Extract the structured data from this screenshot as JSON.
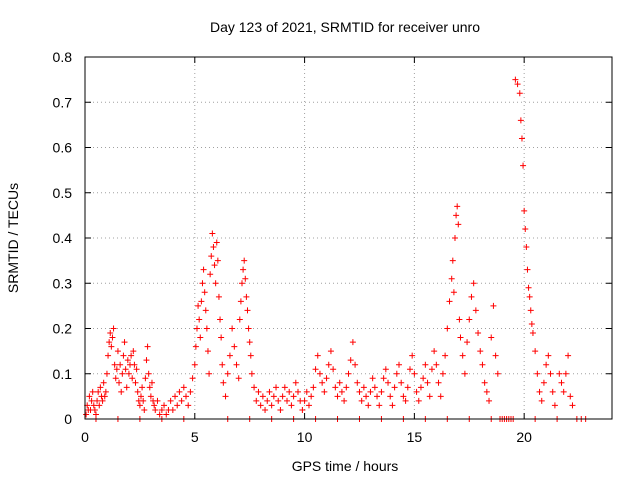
{
  "chart_data": {
    "type": "scatter",
    "title": "Day 123 of 2021, SRMTID for receiver unro",
    "xlabel": "GPS time / hours",
    "ylabel": "SRMTID / TECUs",
    "xlim": [
      0,
      24
    ],
    "ylim": [
      0,
      0.8
    ],
    "x_ticks": [
      0,
      5,
      10,
      15,
      20
    ],
    "x_tick_labels": [
      "0",
      "5",
      "10",
      "15",
      "20"
    ],
    "y_ticks": [
      0,
      0.1,
      0.2,
      0.3,
      0.4,
      0.5,
      0.6,
      0.7,
      0.8
    ],
    "y_tick_labels": [
      "0",
      "0.1",
      "0.2",
      "0.3",
      "0.4",
      "0.5",
      "0.6",
      "0.7",
      "0.8"
    ],
    "grid": true,
    "marker": "+",
    "color": "#ff0000",
    "series": [
      {
        "name": "SRMTID",
        "points": [
          [
            0.05,
            0.01
          ],
          [
            0.1,
            0.03
          ],
          [
            0.15,
            0.02
          ],
          [
            0.2,
            0.05
          ],
          [
            0.25,
            0.02
          ],
          [
            0.3,
            0.04
          ],
          [
            0.35,
            0.06
          ],
          [
            0.4,
            0.03
          ],
          [
            0.45,
            0.02
          ],
          [
            0.5,
            0.01
          ],
          [
            0.55,
            0.04
          ],
          [
            0.6,
            0.06
          ],
          [
            0.65,
            0.03
          ],
          [
            0.7,
            0.07
          ],
          [
            0.75,
            0.05
          ],
          [
            0.8,
            0.04
          ],
          [
            0.85,
            0.08
          ],
          [
            0.9,
            0.05
          ],
          [
            0.95,
            0.06
          ],
          [
            1.0,
            0.1
          ],
          [
            1.05,
            0.14
          ],
          [
            1.1,
            0.17
          ],
          [
            1.15,
            0.19
          ],
          [
            1.2,
            0.16
          ],
          [
            1.25,
            0.18
          ],
          [
            1.3,
            0.2
          ],
          [
            1.35,
            0.12
          ],
          [
            1.4,
            0.09
          ],
          [
            1.45,
            0.11
          ],
          [
            1.5,
            0.15
          ],
          [
            1.55,
            0.08
          ],
          [
            1.6,
            0.12
          ],
          [
            1.65,
            0.06
          ],
          [
            1.7,
            0.1
          ],
          [
            1.75,
            0.14
          ],
          [
            1.8,
            0.17
          ],
          [
            1.85,
            0.11
          ],
          [
            1.9,
            0.07
          ],
          [
            1.95,
            0.13
          ],
          [
            2.0,
            0.1
          ],
          [
            2.05,
            0.12
          ],
          [
            2.1,
            0.14
          ],
          [
            2.15,
            0.09
          ],
          [
            2.2,
            0.15
          ],
          [
            2.25,
            0.12
          ],
          [
            2.3,
            0.08
          ],
          [
            2.35,
            0.11
          ],
          [
            2.4,
            0.06
          ],
          [
            2.45,
            0.04
          ],
          [
            2.5,
            0.03
          ],
          [
            2.55,
            0.05
          ],
          [
            2.6,
            0.07
          ],
          [
            2.65,
            0.04
          ],
          [
            2.7,
            0.02
          ],
          [
            2.75,
            0.09
          ],
          [
            2.8,
            0.13
          ],
          [
            2.85,
            0.16
          ],
          [
            2.9,
            0.1
          ],
          [
            2.95,
            0.07
          ],
          [
            3.0,
            0.05
          ],
          [
            3.05,
            0.08
          ],
          [
            3.1,
            0.04
          ],
          [
            3.15,
            0.03
          ],
          [
            3.2,
            0.02
          ],
          [
            3.3,
            0.04
          ],
          [
            3.4,
            0.01
          ],
          [
            3.5,
            0.02
          ],
          [
            3.6,
            0.03
          ],
          [
            3.7,
            0.01
          ],
          [
            3.8,
            0.02
          ],
          [
            3.9,
            0.04
          ],
          [
            4.0,
            0.02
          ],
          [
            4.1,
            0.05
          ],
          [
            4.2,
            0.03
          ],
          [
            4.3,
            0.06
          ],
          [
            4.4,
            0.04
          ],
          [
            4.5,
            0.07
          ],
          [
            4.6,
            0.05
          ],
          [
            4.7,
            0.03
          ],
          [
            4.8,
            0.06
          ],
          [
            4.9,
            0.09
          ],
          [
            5.0,
            0.12
          ],
          [
            5.05,
            0.16
          ],
          [
            5.1,
            0.2
          ],
          [
            5.15,
            0.25
          ],
          [
            5.2,
            0.22
          ],
          [
            5.25,
            0.18
          ],
          [
            5.3,
            0.26
          ],
          [
            5.35,
            0.3
          ],
          [
            5.4,
            0.33
          ],
          [
            5.45,
            0.28
          ],
          [
            5.5,
            0.24
          ],
          [
            5.55,
            0.2
          ],
          [
            5.6,
            0.15
          ],
          [
            5.65,
            0.1
          ],
          [
            5.7,
            0.32
          ],
          [
            5.75,
            0.36
          ],
          [
            5.8,
            0.41
          ],
          [
            5.85,
            0.38
          ],
          [
            5.9,
            0.34
          ],
          [
            5.95,
            0.3
          ],
          [
            6.0,
            0.39
          ],
          [
            6.05,
            0.35
          ],
          [
            6.1,
            0.27
          ],
          [
            6.15,
            0.22
          ],
          [
            6.2,
            0.18
          ],
          [
            6.25,
            0.12
          ],
          [
            6.3,
            0.08
          ],
          [
            6.4,
            0.05
          ],
          [
            6.5,
            0.1
          ],
          [
            6.6,
            0.14
          ],
          [
            6.7,
            0.2
          ],
          [
            6.8,
            0.16
          ],
          [
            6.9,
            0.12
          ],
          [
            7.0,
            0.09
          ],
          [
            7.05,
            0.22
          ],
          [
            7.1,
            0.26
          ],
          [
            7.15,
            0.3
          ],
          [
            7.2,
            0.33
          ],
          [
            7.25,
            0.35
          ],
          [
            7.3,
            0.31
          ],
          [
            7.35,
            0.27
          ],
          [
            7.4,
            0.24
          ],
          [
            7.45,
            0.2
          ],
          [
            7.5,
            0.17
          ],
          [
            7.55,
            0.14
          ],
          [
            7.6,
            0.1
          ],
          [
            7.7,
            0.07
          ],
          [
            7.8,
            0.04
          ],
          [
            7.9,
            0.06
          ],
          [
            8.0,
            0.03
          ],
          [
            8.1,
            0.05
          ],
          [
            8.2,
            0.02
          ],
          [
            8.3,
            0.04
          ],
          [
            8.4,
            0.06
          ],
          [
            8.5,
            0.03
          ],
          [
            8.6,
            0.05
          ],
          [
            8.7,
            0.07
          ],
          [
            8.8,
            0.04
          ],
          [
            8.9,
            0.02
          ],
          [
            9.0,
            0.05
          ],
          [
            9.1,
            0.07
          ],
          [
            9.2,
            0.04
          ],
          [
            9.3,
            0.06
          ],
          [
            9.4,
            0.03
          ],
          [
            9.5,
            0.05
          ],
          [
            9.6,
            0.08
          ],
          [
            9.7,
            0.06
          ],
          [
            9.8,
            0.04
          ],
          [
            9.9,
            0.02
          ],
          [
            10.0,
            0.04
          ],
          [
            10.1,
            0.06
          ],
          [
            10.2,
            0.03
          ],
          [
            10.3,
            0.05
          ],
          [
            10.4,
            0.07
          ],
          [
            10.5,
            0.11
          ],
          [
            10.6,
            0.14
          ],
          [
            10.7,
            0.1
          ],
          [
            10.8,
            0.08
          ],
          [
            10.9,
            0.06
          ],
          [
            11.0,
            0.09
          ],
          [
            11.1,
            0.12
          ],
          [
            11.2,
            0.15
          ],
          [
            11.3,
            0.11
          ],
          [
            11.4,
            0.07
          ],
          [
            11.5,
            0.05
          ],
          [
            11.6,
            0.08
          ],
          [
            11.7,
            0.06
          ],
          [
            11.8,
            0.04
          ],
          [
            11.9,
            0.07
          ],
          [
            12.0,
            0.1
          ],
          [
            12.1,
            0.13
          ],
          [
            12.2,
            0.17
          ],
          [
            12.3,
            0.12
          ],
          [
            12.4,
            0.08
          ],
          [
            12.5,
            0.06
          ],
          [
            12.6,
            0.04
          ],
          [
            12.7,
            0.07
          ],
          [
            12.8,
            0.05
          ],
          [
            12.9,
            0.03
          ],
          [
            13.0,
            0.06
          ],
          [
            13.1,
            0.09
          ],
          [
            13.2,
            0.07
          ],
          [
            13.3,
            0.05
          ],
          [
            13.4,
            0.03
          ],
          [
            13.5,
            0.06
          ],
          [
            13.6,
            0.09
          ],
          [
            13.7,
            0.11
          ],
          [
            13.8,
            0.08
          ],
          [
            13.9,
            0.05
          ],
          [
            14.0,
            0.03
          ],
          [
            14.1,
            0.07
          ],
          [
            14.2,
            0.1
          ],
          [
            14.3,
            0.12
          ],
          [
            14.4,
            0.08
          ],
          [
            14.5,
            0.05
          ],
          [
            14.6,
            0.04
          ],
          [
            14.7,
            0.07
          ],
          [
            14.8,
            0.11
          ],
          [
            14.9,
            0.14
          ],
          [
            15.0,
            0.1
          ],
          [
            15.1,
            0.06
          ],
          [
            15.2,
            0.04
          ],
          [
            15.3,
            0.07
          ],
          [
            15.4,
            0.09
          ],
          [
            15.5,
            0.12
          ],
          [
            15.6,
            0.08
          ],
          [
            15.7,
            0.05
          ],
          [
            15.8,
            0.11
          ],
          [
            15.9,
            0.15
          ],
          [
            16.0,
            0.12
          ],
          [
            16.1,
            0.08
          ],
          [
            16.2,
            0.05
          ],
          [
            16.3,
            0.1
          ],
          [
            16.4,
            0.14
          ],
          [
            16.5,
            0.2
          ],
          [
            16.6,
            0.26
          ],
          [
            16.7,
            0.31
          ],
          [
            16.75,
            0.35
          ],
          [
            16.8,
            0.28
          ],
          [
            16.85,
            0.4
          ],
          [
            16.9,
            0.45
          ],
          [
            16.95,
            0.47
          ],
          [
            17.0,
            0.43
          ],
          [
            17.05,
            0.22
          ],
          [
            17.1,
            0.18
          ],
          [
            17.2,
            0.14
          ],
          [
            17.3,
            0.1
          ],
          [
            17.4,
            0.17
          ],
          [
            17.5,
            0.22
          ],
          [
            17.6,
            0.27
          ],
          [
            17.7,
            0.3
          ],
          [
            17.8,
            0.24
          ],
          [
            17.9,
            0.19
          ],
          [
            18.0,
            0.15
          ],
          [
            18.1,
            0.12
          ],
          [
            18.2,
            0.08
          ],
          [
            18.3,
            0.06
          ],
          [
            18.4,
            0.04
          ],
          [
            18.5,
            0.18
          ],
          [
            18.6,
            0.25
          ],
          [
            18.7,
            0.14
          ],
          [
            18.8,
            0.1
          ],
          [
            19.6,
            0.75
          ],
          [
            19.7,
            0.74
          ],
          [
            19.8,
            0.72
          ],
          [
            19.85,
            0.66
          ],
          [
            19.9,
            0.62
          ],
          [
            19.95,
            0.56
          ],
          [
            20.0,
            0.46
          ],
          [
            20.05,
            0.42
          ],
          [
            20.1,
            0.38
          ],
          [
            20.15,
            0.33
          ],
          [
            20.2,
            0.29
          ],
          [
            20.25,
            0.27
          ],
          [
            20.3,
            0.24
          ],
          [
            20.35,
            0.21
          ],
          [
            20.4,
            0.19
          ],
          [
            20.5,
            0.15
          ],
          [
            20.6,
            0.1
          ],
          [
            20.7,
            0.06
          ],
          [
            20.8,
            0.04
          ],
          [
            20.9,
            0.08
          ],
          [
            21.0,
            0.12
          ],
          [
            21.1,
            0.14
          ],
          [
            21.2,
            0.1
          ],
          [
            21.3,
            0.06
          ],
          [
            21.4,
            0.03
          ],
          [
            21.6,
            0.1
          ],
          [
            21.7,
            0.08
          ],
          [
            21.8,
            0.06
          ],
          [
            21.9,
            0.1
          ],
          [
            22.0,
            0.14
          ],
          [
            22.1,
            0.05
          ],
          [
            22.2,
            0.03
          ],
          [
            22.4,
            0.0
          ],
          [
            22.6,
            0.0
          ],
          [
            22.8,
            0.0
          ],
          [
            18.9,
            0.0
          ],
          [
            19.0,
            0.0
          ],
          [
            19.1,
            0.0
          ],
          [
            19.2,
            0.0
          ],
          [
            19.3,
            0.0
          ],
          [
            19.4,
            0.0
          ],
          [
            19.5,
            0.0
          ],
          [
            0.5,
            0.0
          ],
          [
            1.5,
            0.0
          ],
          [
            2.5,
            0.0
          ],
          [
            3.5,
            0.0
          ],
          [
            4.5,
            0.0
          ],
          [
            6.5,
            0.0
          ],
          [
            7.5,
            0.0
          ],
          [
            8.5,
            0.0
          ],
          [
            9.5,
            0.0
          ],
          [
            10.5,
            0.0
          ],
          [
            11.5,
            0.0
          ],
          [
            12.5,
            0.0
          ],
          [
            13.5,
            0.0
          ],
          [
            14.5,
            0.0
          ],
          [
            15.5,
            0.0
          ],
          [
            16.5,
            0.0
          ],
          [
            17.5,
            0.0
          ],
          [
            18.5,
            0.0
          ],
          [
            20.5,
            0.0
          ],
          [
            21.5,
            0.0
          ]
        ]
      }
    ]
  }
}
